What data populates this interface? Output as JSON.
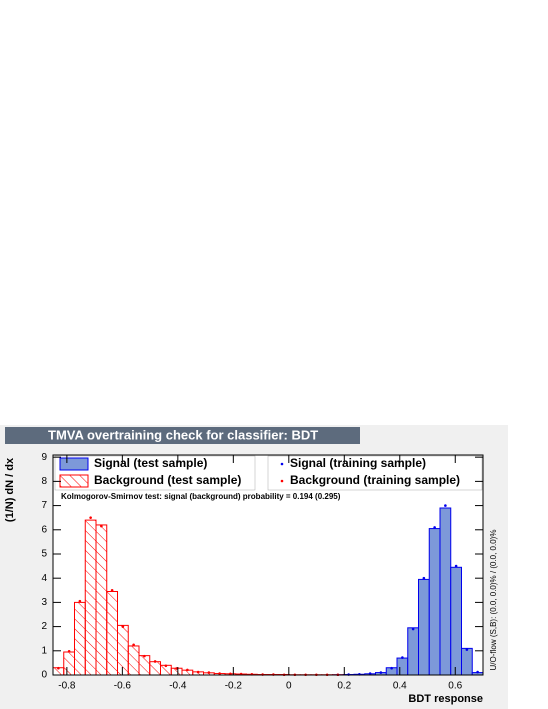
{
  "chart_data": {
    "type": "histogram",
    "title": "TMVA overtraining check for classifier: BDT",
    "xlabel": "BDT response",
    "ylabel": "(1/N) dN / dx",
    "annotation": "Kolmogorov-Smirnov test: signal (background) probability = 0.194 (0.295)",
    "side_note": "U/O-flow (S,B): (0.0, 0.0)% / (0.0, 0.0)%",
    "bins": [
      -0.85,
      -0.81125,
      -0.7725,
      -0.73375,
      -0.695,
      -0.65625,
      -0.6175,
      -0.57875,
      -0.54,
      -0.50125,
      -0.4625,
      -0.42375,
      -0.385,
      -0.34625,
      -0.3075,
      -0.26875,
      -0.23,
      -0.19125,
      -0.1525,
      -0.11375,
      -0.075,
      -0.03625,
      0.0025,
      0.04125,
      0.08,
      0.11875,
      0.1575,
      0.19625,
      0.235,
      0.27375,
      0.3125,
      0.35125,
      0.39,
      0.42875,
      0.4675,
      0.50625,
      0.545,
      0.58375,
      0.6225,
      0.66125,
      0.7
    ],
    "series": [
      {
        "name": "Signal (test sample)",
        "color": "#0000ee",
        "fill": "#7d99d9",
        "style": "filled",
        "values": [
          0,
          0,
          0,
          0,
          0,
          0,
          0,
          0,
          0,
          0,
          0,
          0,
          0,
          0,
          0,
          0,
          0,
          0,
          0,
          0,
          0,
          0,
          0,
          0,
          0,
          0,
          0.01,
          0.02,
          0.03,
          0.05,
          0.1,
          0.3,
          0.7,
          1.95,
          3.95,
          6.05,
          6.9,
          4.45,
          1.1,
          0.1
        ]
      },
      {
        "name": "Background (test sample)",
        "color": "#ff0000",
        "style": "hatched",
        "values": [
          0.3,
          0.95,
          3.0,
          6.4,
          6.2,
          3.45,
          2.05,
          1.2,
          0.8,
          0.55,
          0.4,
          0.28,
          0.2,
          0.13,
          0.09,
          0.06,
          0.05,
          0.04,
          0.03,
          0.02,
          0.02,
          0.02,
          0.01,
          0.01,
          0.01,
          0.01,
          0.01,
          0,
          0,
          0,
          0,
          0,
          0,
          0,
          0,
          0,
          0,
          0,
          0,
          0
        ]
      },
      {
        "name": "Signal (training sample)",
        "color": "#0000ee",
        "style": "points",
        "values": [
          0,
          0,
          0,
          0,
          0,
          0,
          0,
          0,
          0,
          0,
          0,
          0,
          0,
          0,
          0,
          0,
          0,
          0,
          0,
          0,
          0,
          0,
          0,
          0,
          0,
          0,
          0.01,
          0.02,
          0.03,
          0.06,
          0.1,
          0.28,
          0.72,
          1.9,
          4.0,
          6.1,
          7.0,
          4.5,
          1.05,
          0.12
        ]
      },
      {
        "name": "Background (training sample)",
        "color": "#ff0000",
        "style": "points",
        "values": [
          0.28,
          0.98,
          3.05,
          6.5,
          6.15,
          3.5,
          2.0,
          1.25,
          0.78,
          0.56,
          0.38,
          0.27,
          0.21,
          0.12,
          0.1,
          0.06,
          0.05,
          0.04,
          0.03,
          0.02,
          0.02,
          0.01,
          0.01,
          0.01,
          0.01,
          0.01,
          0.01,
          0,
          0,
          0,
          0,
          0,
          0,
          0,
          0,
          0,
          0,
          0,
          0,
          0
        ]
      }
    ],
    "xlim": [
      -0.85,
      0.7
    ],
    "ylim": [
      0,
      9.09
    ],
    "xticks": [
      -0.8,
      -0.6,
      -0.4,
      -0.2,
      0,
      0.2,
      0.4,
      0.6
    ],
    "yticks": [
      0,
      1,
      2,
      3,
      4,
      5,
      6,
      7,
      8,
      9
    ]
  }
}
